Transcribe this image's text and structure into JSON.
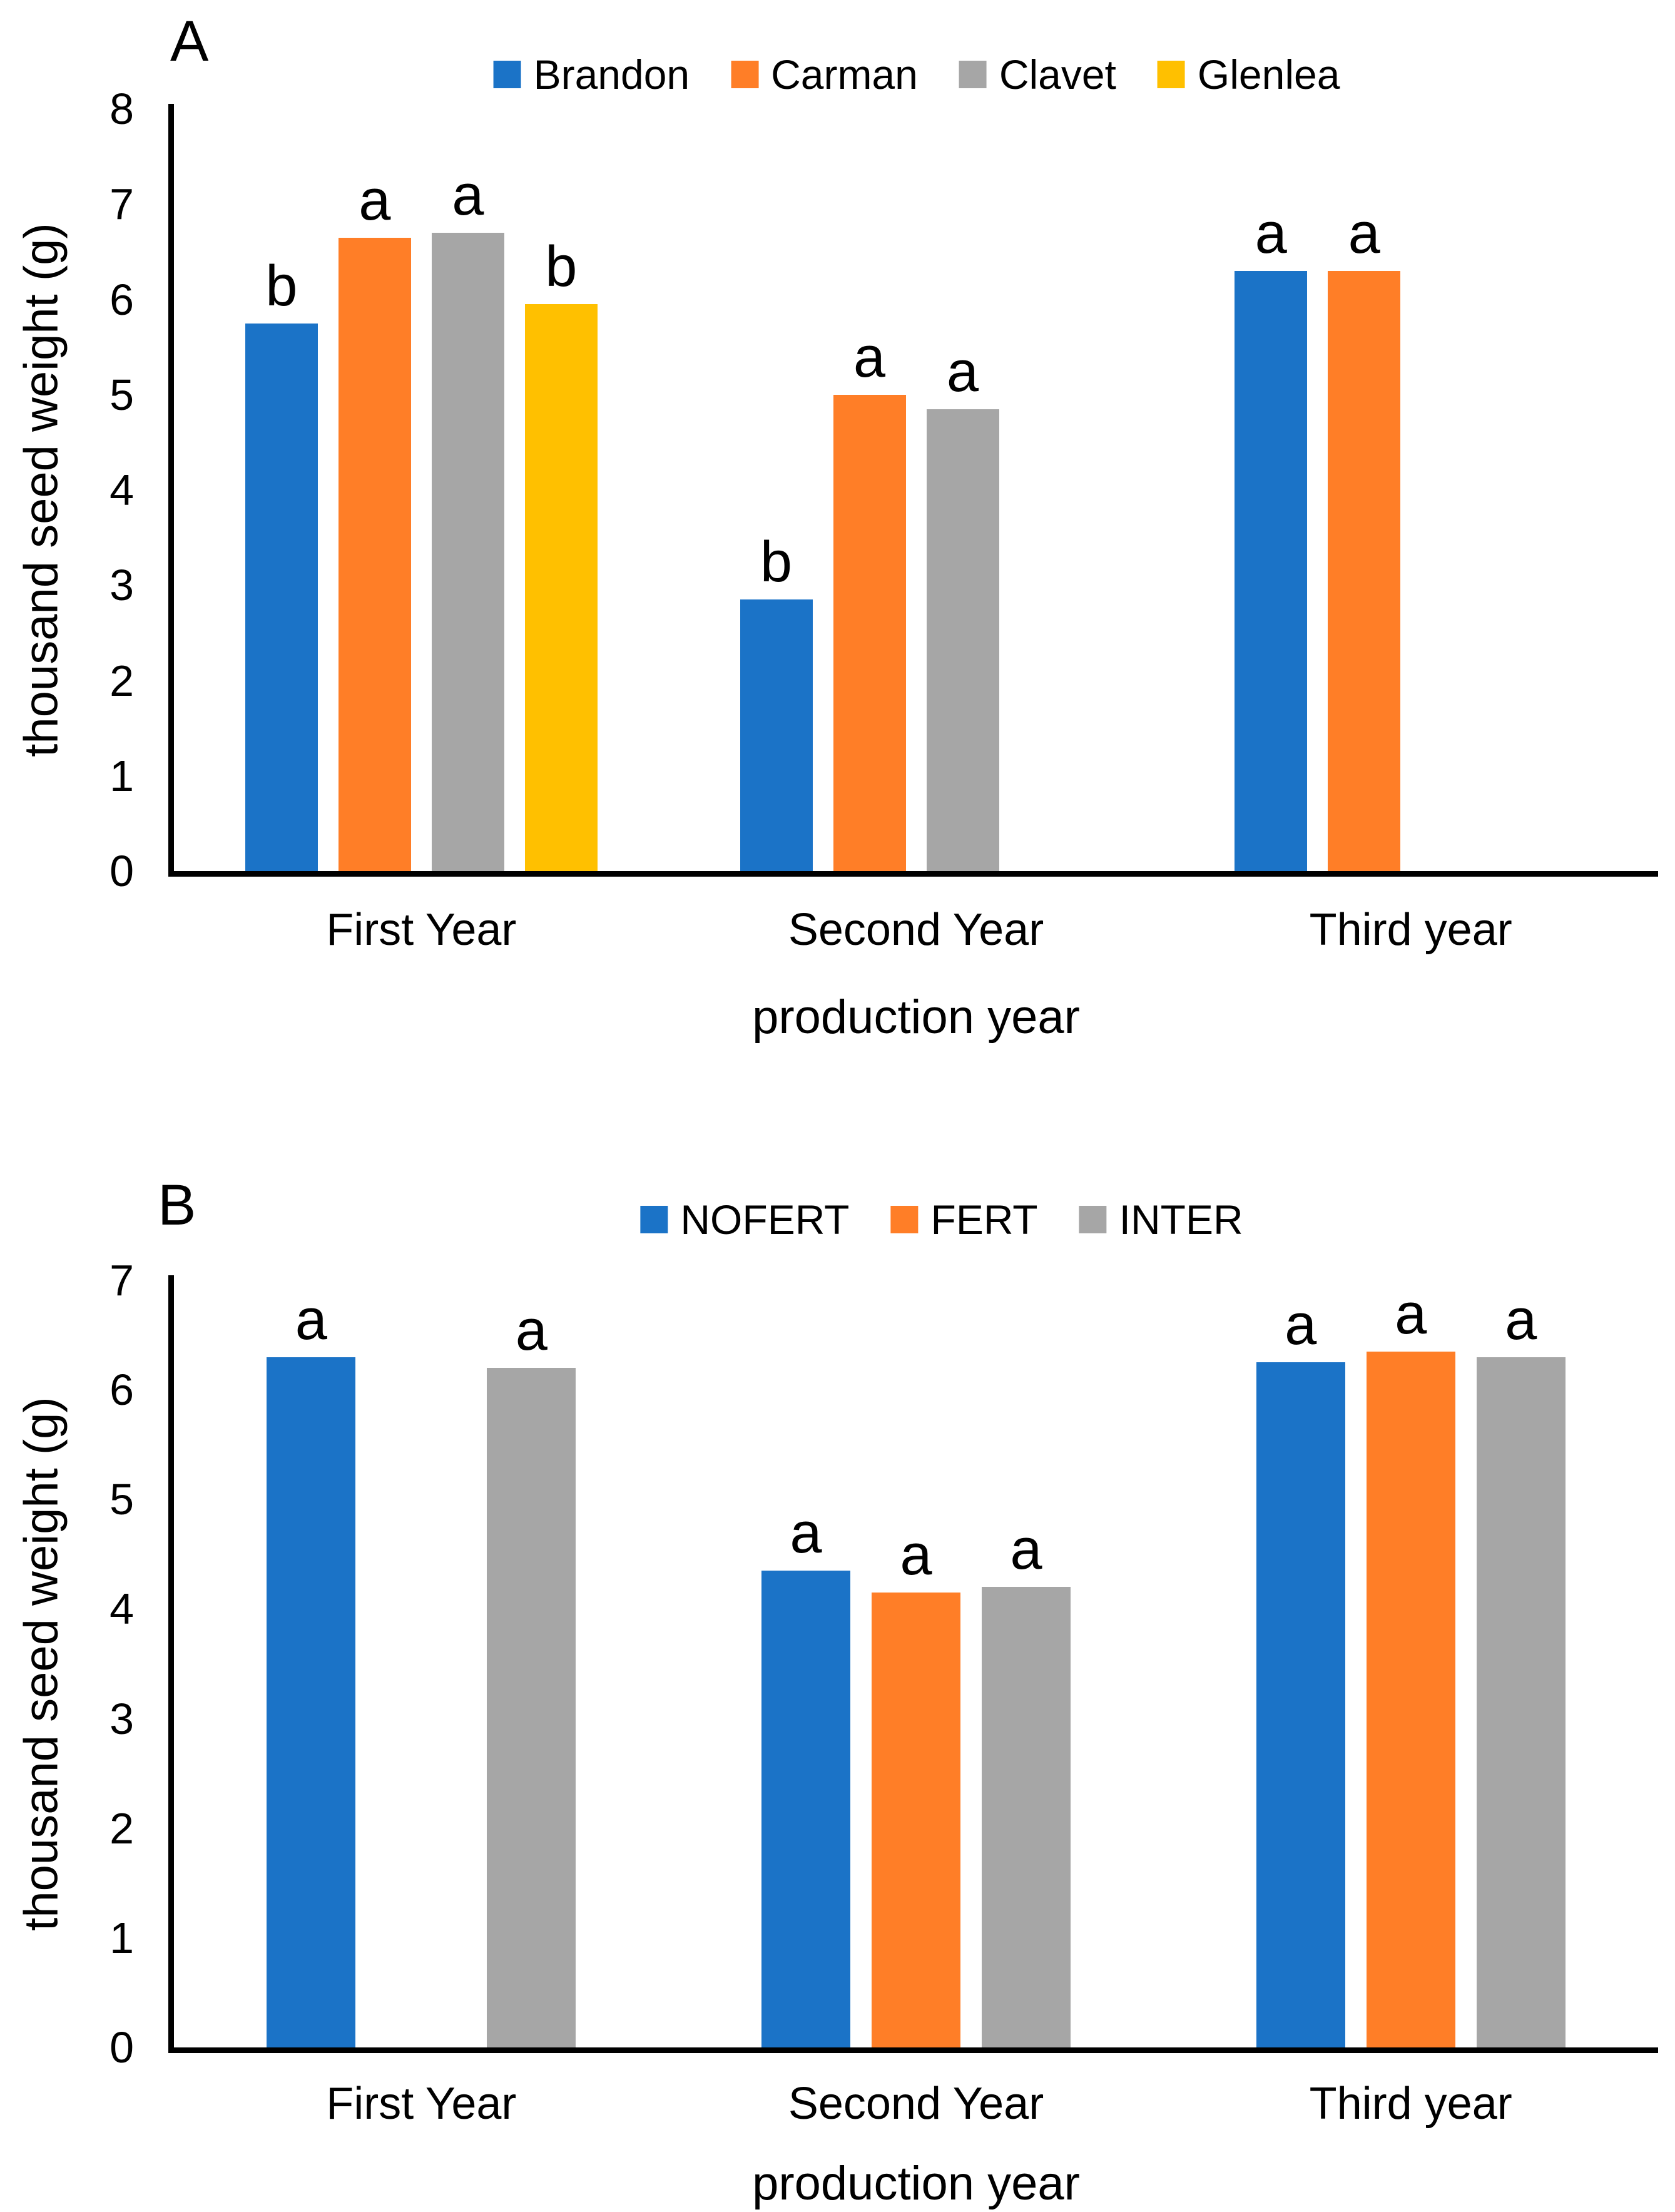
{
  "figure_background": "#ffffff",
  "axis_color": "#000000",
  "chart_data": [
    {
      "type": "bar",
      "panel_label": "A",
      "title": "",
      "xlabel": "production year",
      "ylabel": "thousand seed weight (g)",
      "ylim": [
        0,
        8
      ],
      "yticks": [
        0,
        1,
        2,
        3,
        4,
        5,
        6,
        7,
        8
      ],
      "categories": [
        "First Year",
        "Second Year",
        "Third year"
      ],
      "grid": false,
      "legend_position": "top-center",
      "series": [
        {
          "name": "Brandon",
          "color": "#1B73C7",
          "values": [
            5.75,
            2.85,
            6.3
          ],
          "letters": [
            "b",
            "b",
            "a"
          ]
        },
        {
          "name": "Carman",
          "color": "#FF7E27",
          "values": [
            6.65,
            5.0,
            6.3
          ],
          "letters": [
            "a",
            "a",
            "a"
          ]
        },
        {
          "name": "Clavet",
          "color": "#A6A6A6",
          "values": [
            6.7,
            4.85,
            null
          ],
          "letters": [
            "a",
            "a",
            null
          ]
        },
        {
          "name": "Glenlea",
          "color": "#FFC000",
          "values": [
            5.95,
            null,
            null
          ],
          "letters": [
            "b",
            null,
            null
          ]
        }
      ]
    },
    {
      "type": "bar",
      "panel_label": "B",
      "title": "",
      "xlabel": "production year",
      "ylabel": "thousand seed weight (g)",
      "ylim": [
        0,
        7
      ],
      "yticks": [
        0,
        1,
        2,
        3,
        4,
        5,
        6,
        7
      ],
      "categories": [
        "First Year",
        "Second Year",
        "Third year"
      ],
      "grid": false,
      "legend_position": "top-center",
      "series": [
        {
          "name": "NOFERT",
          "color": "#1B73C7",
          "values": [
            6.3,
            4.35,
            6.25
          ],
          "letters": [
            "a",
            "a",
            "a"
          ]
        },
        {
          "name": "FERT",
          "color": "#FF7E27",
          "values": [
            null,
            4.15,
            6.35
          ],
          "letters": [
            null,
            "a",
            "a"
          ]
        },
        {
          "name": "INTER",
          "color": "#A6A6A6",
          "values": [
            6.2,
            4.2,
            6.3
          ],
          "letters": [
            "a",
            "a",
            "a"
          ]
        }
      ]
    }
  ]
}
